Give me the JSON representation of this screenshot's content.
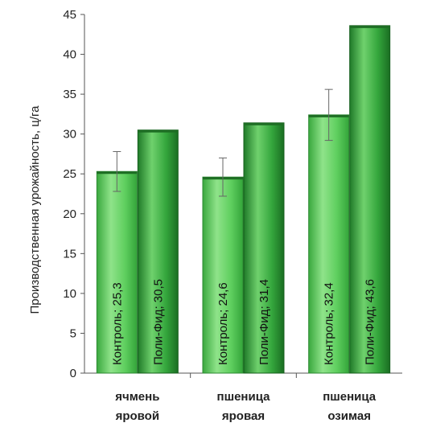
{
  "chart_data": {
    "type": "bar",
    "title": "",
    "xlabel": "",
    "ylabel": "Производственная урожайность, ц/га",
    "ylim": [
      0,
      45
    ],
    "yticks": [
      0,
      5,
      10,
      15,
      20,
      25,
      30,
      35,
      40,
      45
    ],
    "grid": false,
    "categories": [
      [
        "ячмень",
        "яровой"
      ],
      [
        "пшеница",
        "яровая"
      ],
      [
        "пшеница",
        "озимая"
      ]
    ],
    "series": [
      {
        "values": [
          25.3,
          24.6,
          32.4
        ],
        "labels": [
          "Контроль; 25,3",
          "Контроль; 24,6",
          "Контроль; 32,4"
        ],
        "error_low": [
          22.8,
          22.2,
          29.2
        ],
        "error_high": [
          27.8,
          27.0,
          35.6
        ],
        "color": "#5cc95c"
      },
      {
        "values": [
          30.5,
          31.4,
          43.6
        ],
        "labels": [
          "Поли-Фид; 30,5",
          "Поли-Фид; 31,4",
          "Поли-Фид; 43,6"
        ],
        "color": "#2f9a3a"
      }
    ]
  }
}
